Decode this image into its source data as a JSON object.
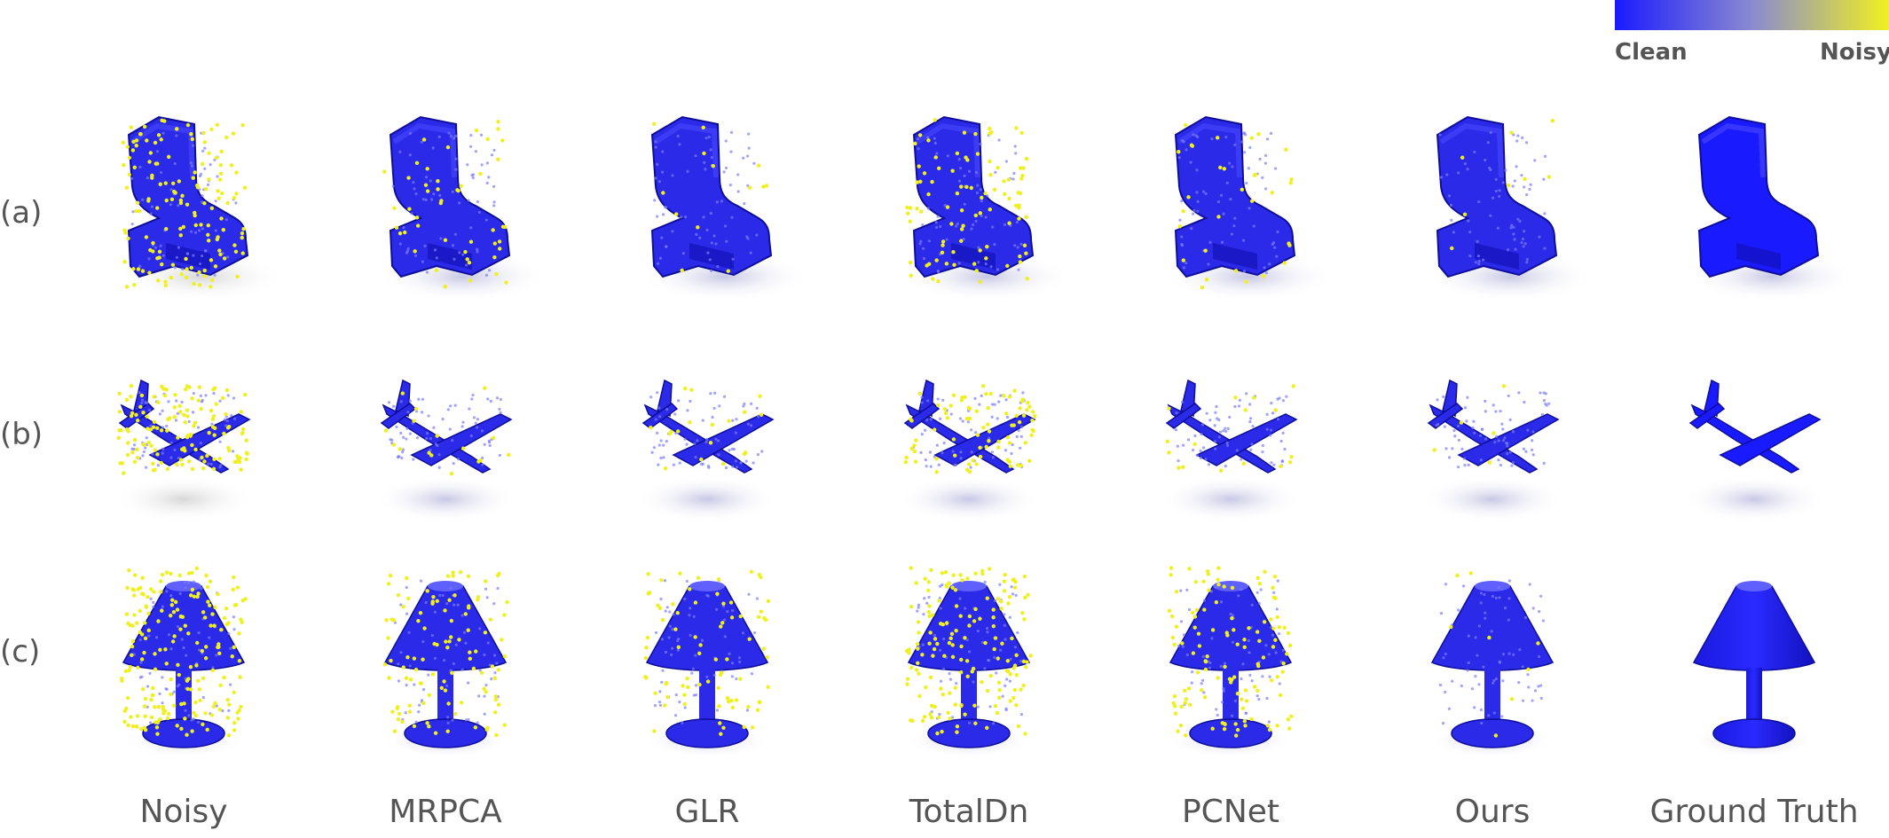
{
  "colorbar": {
    "left_label": "Clean",
    "right_label": "Noisy",
    "colors": {
      "clean": "#1a1aff",
      "noisy": "#f0f020"
    }
  },
  "rows": [
    {
      "label": "(a)",
      "object": "chair"
    },
    {
      "label": "(b)",
      "object": "airplane"
    },
    {
      "label": "(c)",
      "object": "lamp"
    }
  ],
  "columns": [
    {
      "label": "Noisy"
    },
    {
      "label": "MRPCA"
    },
    {
      "label": "GLR"
    },
    {
      "label": "TotalDn"
    },
    {
      "label": "PCNet"
    },
    {
      "label": "Ours"
    },
    {
      "label": "Ground Truth"
    }
  ],
  "noise_levels": [
    [
      0.55,
      0.18,
      0.05,
      0.35,
      0.12,
      0.03,
      0.0
    ],
    [
      0.5,
      0.06,
      0.07,
      0.3,
      0.06,
      0.02,
      0.0
    ],
    [
      0.75,
      0.4,
      0.3,
      0.6,
      0.45,
      0.03,
      0.0
    ]
  ]
}
